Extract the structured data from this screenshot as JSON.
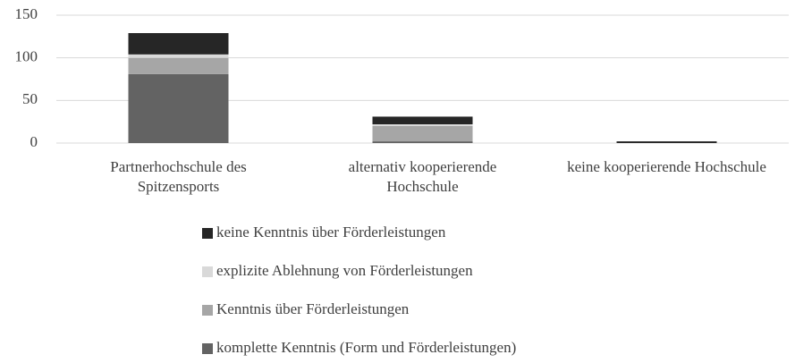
{
  "chart_data": {
    "type": "bar",
    "stacked": true,
    "categories": [
      "Partnerhochschule des Spitzensports",
      "alternativ kooperierende Hochschule",
      "keine kooperierende Hochschule"
    ],
    "series": [
      {
        "name": "komplette Kenntnis (Form und Förderleistungen)",
        "color": "#636363",
        "values": [
          81,
          2,
          0
        ]
      },
      {
        "name": "Kenntnis über Förderleistungen",
        "color": "#a6a6a6",
        "values": [
          19,
          18,
          0
        ]
      },
      {
        "name": "explizite Ablehnung von Förderleistungen",
        "color": "#d9d9d9",
        "values": [
          4,
          2,
          0
        ]
      },
      {
        "name": "keine Kenntnis über Förderleistungen",
        "color": "#262626",
        "values": [
          25,
          9,
          2
        ]
      }
    ],
    "ylim": [
      0,
      150
    ],
    "yticks": [
      0,
      50,
      100,
      150
    ],
    "grid": true,
    "legend": "bottom"
  }
}
